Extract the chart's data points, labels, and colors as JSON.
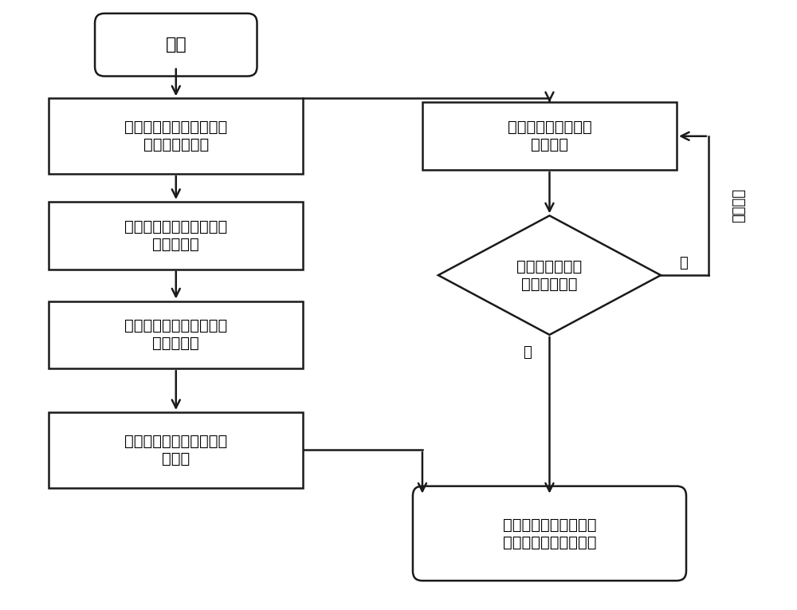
{
  "bg_color": "#ffffff",
  "line_color": "#1a1a1a",
  "box_fill": "#ffffff",
  "text_color": "#000000",
  "font_size": 14,
  "small_font_size": 13,
  "start_text": "开始",
  "lb1_text": "建立多光路系统光焦度分\n配优化函数分项",
  "lb2_text": "建立两反光路近轴像差优\n化函数分项",
  "lb3_text": "建立折反光路近轴像差优\n化函数分项",
  "lb4_text": "建立光机结构参数优化函\n数分项",
  "rb1_text": "建立各优化函数分项\n分配权重",
  "rb2_text": "获得最小目标函数对应\n的多光路系统初始结构",
  "dia_text": "搜索与优化获得\n最小目标函数",
  "label_no": "否",
  "label_yes": "是",
  "label_weight": "优化权重"
}
